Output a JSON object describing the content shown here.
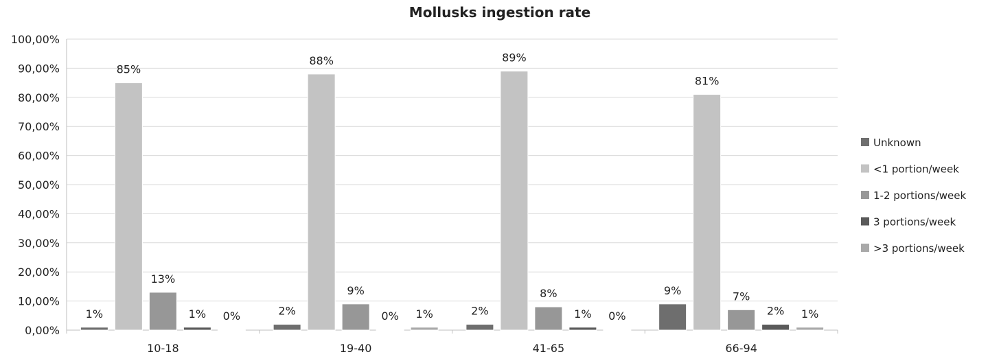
{
  "chart_data": {
    "type": "bar",
    "title": "Mollusks ingestion rate",
    "xlabel": "",
    "ylabel": "",
    "ylim": [
      0,
      100
    ],
    "yticks": [
      "0,00%",
      "10,00%",
      "20,00%",
      "30,00%",
      "40,00%",
      "50,00%",
      "60,00%",
      "70,00%",
      "80,00%",
      "90,00%",
      "100,00%"
    ],
    "categories": [
      "10-18",
      "19-40",
      "41-65",
      "66-94"
    ],
    "series": [
      {
        "name": "Unknown",
        "color": "#6e6e6e",
        "values": [
          1,
          2,
          2,
          9
        ],
        "labels": [
          "1%",
          "2%",
          "2%",
          "9%"
        ]
      },
      {
        "name": "<1 portion/week",
        "color": "#c3c3c3",
        "values": [
          85,
          88,
          89,
          81
        ],
        "labels": [
          "85%",
          "88%",
          "89%",
          "81%"
        ]
      },
      {
        "name": "1-2 portions/week",
        "color": "#979797",
        "values": [
          13,
          9,
          8,
          7
        ],
        "labels": [
          "13%",
          "9%",
          "8%",
          "7%"
        ]
      },
      {
        "name": "3 portions/week",
        "color": "#5a5a5a",
        "values": [
          1,
          0,
          1,
          2
        ],
        "labels": [
          "1%",
          "0%",
          "1%",
          "2%"
        ]
      },
      {
        "name": ">3 portions/week",
        "color": "#a9a9a9",
        "values": [
          0,
          1,
          0,
          1
        ],
        "labels": [
          "0%",
          "1%",
          "0%",
          "1%"
        ]
      }
    ],
    "grid": true,
    "legend_position": "right"
  }
}
